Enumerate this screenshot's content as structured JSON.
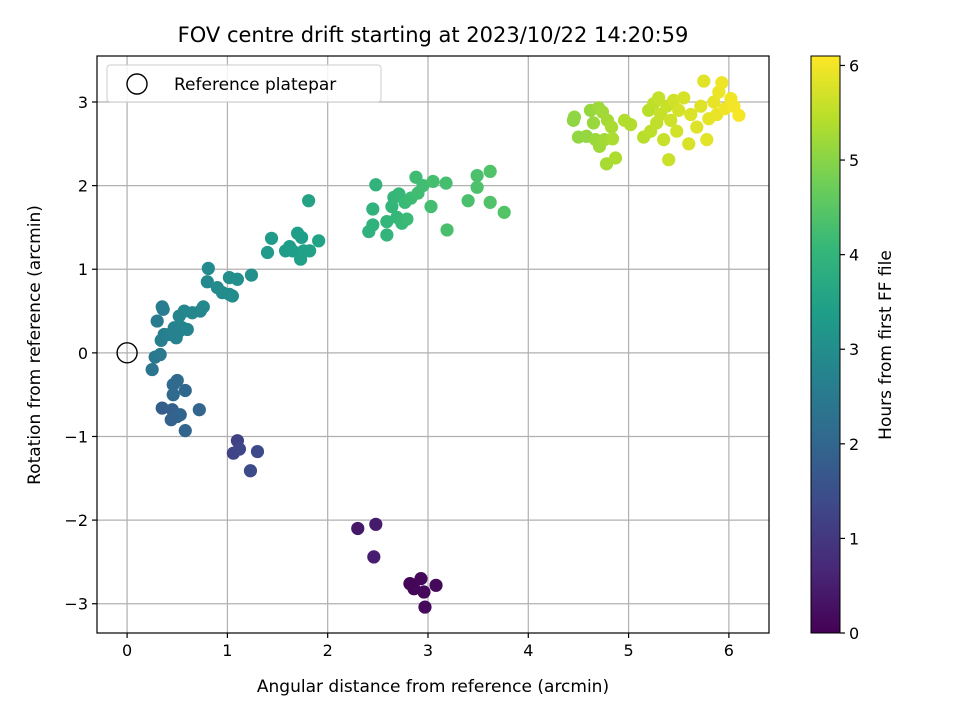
{
  "chart_data": {
    "type": "scatter",
    "title": "FOV centre drift starting at 2023/10/22 14:20:59",
    "xlabel": "Angular distance from reference (arcmin)",
    "ylabel": "Rotation from reference (arcmin)",
    "xlim": [
      -0.3,
      6.4
    ],
    "ylim": [
      -3.35,
      3.55
    ],
    "xticks": [
      0,
      1,
      2,
      3,
      4,
      5,
      6
    ],
    "yticks": [
      -3,
      -2,
      -1,
      0,
      1,
      2,
      3
    ],
    "xtick_labels": [
      "0",
      "1",
      "2",
      "3",
      "4",
      "5",
      "6"
    ],
    "ytick_labels": [
      "−3",
      "−2",
      "−1",
      "0",
      "1",
      "2",
      "3"
    ],
    "grid": true,
    "legend": {
      "placement": "top-left",
      "entries": [
        "Reference platepar"
      ]
    },
    "reference_point": {
      "name": "Reference platepar",
      "x": 0,
      "y": 0,
      "marker": "open-circle"
    },
    "colorbar": {
      "label": "Hours from first FF file",
      "colormap": "viridis",
      "range": [
        0,
        6.1
      ],
      "ticks": [
        0,
        1,
        2,
        3,
        4,
        5,
        6
      ],
      "tick_labels": [
        "0",
        "1",
        "2",
        "3",
        "4",
        "5",
        "6"
      ]
    },
    "points": [
      {
        "x": 2.82,
        "y": -2.76,
        "h": 0.05
      },
      {
        "x": 2.86,
        "y": -2.82,
        "h": 0.08
      },
      {
        "x": 2.93,
        "y": -2.7,
        "h": 0.1
      },
      {
        "x": 2.96,
        "y": -2.86,
        "h": 0.12
      },
      {
        "x": 3.08,
        "y": -2.78,
        "h": 0.14
      },
      {
        "x": 2.97,
        "y": -3.04,
        "h": 0.16
      },
      {
        "x": 2.3,
        "y": -2.1,
        "h": 0.4
      },
      {
        "x": 2.48,
        "y": -2.05,
        "h": 0.45
      },
      {
        "x": 2.46,
        "y": -2.44,
        "h": 0.5
      },
      {
        "x": 1.1,
        "y": -1.05,
        "h": 1.2
      },
      {
        "x": 1.06,
        "y": -1.2,
        "h": 1.25
      },
      {
        "x": 1.12,
        "y": -1.15,
        "h": 1.3
      },
      {
        "x": 1.3,
        "y": -1.18,
        "h": 1.35
      },
      {
        "x": 1.23,
        "y": -1.41,
        "h": 1.4
      },
      {
        "x": 0.35,
        "y": -0.66,
        "h": 1.8
      },
      {
        "x": 0.45,
        "y": -0.68,
        "h": 1.85
      },
      {
        "x": 0.44,
        "y": -0.8,
        "h": 1.9
      },
      {
        "x": 0.5,
        "y": -0.76,
        "h": 1.92
      },
      {
        "x": 0.58,
        "y": -0.93,
        "h": 1.95
      },
      {
        "x": 0.53,
        "y": -0.74,
        "h": 1.97
      },
      {
        "x": 0.72,
        "y": -0.68,
        "h": 2.0
      },
      {
        "x": 0.58,
        "y": -0.45,
        "h": 2.05
      },
      {
        "x": 0.46,
        "y": -0.38,
        "h": 2.08
      },
      {
        "x": 0.5,
        "y": -0.33,
        "h": 2.1
      },
      {
        "x": 0.46,
        "y": -0.5,
        "h": 2.12
      },
      {
        "x": 0.25,
        "y": -0.2,
        "h": 2.4
      },
      {
        "x": 0.28,
        "y": -0.05,
        "h": 2.45
      },
      {
        "x": 0.33,
        "y": -0.02,
        "h": 2.5
      },
      {
        "x": 0.3,
        "y": 0.38,
        "h": 2.55
      },
      {
        "x": 0.35,
        "y": 0.55,
        "h": 2.58
      },
      {
        "x": 0.36,
        "y": 0.52,
        "h": 2.6
      },
      {
        "x": 0.34,
        "y": 0.15,
        "h": 2.62
      },
      {
        "x": 0.37,
        "y": 0.22,
        "h": 2.64
      },
      {
        "x": 0.42,
        "y": 0.22,
        "h": 2.66
      },
      {
        "x": 0.47,
        "y": 0.3,
        "h": 2.68
      },
      {
        "x": 0.49,
        "y": 0.18,
        "h": 2.7
      },
      {
        "x": 0.52,
        "y": 0.26,
        "h": 2.72
      },
      {
        "x": 0.55,
        "y": 0.3,
        "h": 2.74
      },
      {
        "x": 0.6,
        "y": 0.28,
        "h": 2.76
      },
      {
        "x": 0.52,
        "y": 0.44,
        "h": 2.78
      },
      {
        "x": 0.57,
        "y": 0.5,
        "h": 2.8
      },
      {
        "x": 0.65,
        "y": 0.48,
        "h": 2.82
      },
      {
        "x": 0.73,
        "y": 0.5,
        "h": 2.84
      },
      {
        "x": 0.76,
        "y": 0.55,
        "h": 2.86
      },
      {
        "x": 0.8,
        "y": 0.85,
        "h": 2.88
      },
      {
        "x": 0.81,
        "y": 1.01,
        "h": 2.9
      },
      {
        "x": 0.9,
        "y": 0.78,
        "h": 2.92
      },
      {
        "x": 0.95,
        "y": 0.72,
        "h": 2.94
      },
      {
        "x": 1.02,
        "y": 0.7,
        "h": 2.96
      },
      {
        "x": 1.05,
        "y": 0.68,
        "h": 2.98
      },
      {
        "x": 1.02,
        "y": 0.9,
        "h": 3.0
      },
      {
        "x": 1.1,
        "y": 0.88,
        "h": 3.02
      },
      {
        "x": 1.24,
        "y": 0.93,
        "h": 3.04
      },
      {
        "x": 1.4,
        "y": 1.2,
        "h": 3.3
      },
      {
        "x": 1.44,
        "y": 1.37,
        "h": 3.32
      },
      {
        "x": 1.58,
        "y": 1.22,
        "h": 3.34
      },
      {
        "x": 1.62,
        "y": 1.27,
        "h": 3.36
      },
      {
        "x": 1.65,
        "y": 1.22,
        "h": 3.38
      },
      {
        "x": 1.7,
        "y": 1.43,
        "h": 3.4
      },
      {
        "x": 1.74,
        "y": 1.38,
        "h": 3.42
      },
      {
        "x": 1.73,
        "y": 1.12,
        "h": 3.44
      },
      {
        "x": 1.76,
        "y": 1.22,
        "h": 3.46
      },
      {
        "x": 1.82,
        "y": 1.22,
        "h": 3.48
      },
      {
        "x": 1.81,
        "y": 1.82,
        "h": 3.5
      },
      {
        "x": 1.91,
        "y": 1.34,
        "h": 3.52
      },
      {
        "x": 2.41,
        "y": 1.45,
        "h": 3.9
      },
      {
        "x": 2.45,
        "y": 1.53,
        "h": 3.92
      },
      {
        "x": 2.45,
        "y": 1.72,
        "h": 3.94
      },
      {
        "x": 2.48,
        "y": 2.01,
        "h": 3.96
      },
      {
        "x": 2.59,
        "y": 1.41,
        "h": 3.98
      },
      {
        "x": 2.59,
        "y": 1.57,
        "h": 4.0
      },
      {
        "x": 2.64,
        "y": 1.75,
        "h": 4.02
      },
      {
        "x": 2.66,
        "y": 1.86,
        "h": 4.04
      },
      {
        "x": 2.69,
        "y": 1.62,
        "h": 4.06
      },
      {
        "x": 2.71,
        "y": 1.9,
        "h": 4.08
      },
      {
        "x": 2.74,
        "y": 1.55,
        "h": 4.1
      },
      {
        "x": 2.77,
        "y": 1.8,
        "h": 4.12
      },
      {
        "x": 2.79,
        "y": 1.6,
        "h": 4.14
      },
      {
        "x": 2.83,
        "y": 1.85,
        "h": 4.16
      },
      {
        "x": 2.88,
        "y": 2.1,
        "h": 4.18
      },
      {
        "x": 2.9,
        "y": 1.91,
        "h": 4.2
      },
      {
        "x": 2.95,
        "y": 2.0,
        "h": 4.22
      },
      {
        "x": 3.03,
        "y": 1.75,
        "h": 4.24
      },
      {
        "x": 3.05,
        "y": 2.05,
        "h": 4.26
      },
      {
        "x": 3.18,
        "y": 2.03,
        "h": 4.28
      },
      {
        "x": 3.19,
        "y": 1.47,
        "h": 4.3
      },
      {
        "x": 3.4,
        "y": 1.82,
        "h": 4.32
      },
      {
        "x": 3.49,
        "y": 2.12,
        "h": 4.34
      },
      {
        "x": 3.49,
        "y": 1.98,
        "h": 4.36
      },
      {
        "x": 3.62,
        "y": 2.17,
        "h": 4.38
      },
      {
        "x": 3.62,
        "y": 1.8,
        "h": 4.4
      },
      {
        "x": 3.76,
        "y": 1.68,
        "h": 4.42
      },
      {
        "x": 4.45,
        "y": 2.78,
        "h": 5.05
      },
      {
        "x": 4.46,
        "y": 2.82,
        "h": 5.07
      },
      {
        "x": 4.5,
        "y": 2.58,
        "h": 5.09
      },
      {
        "x": 4.58,
        "y": 2.59,
        "h": 5.11
      },
      {
        "x": 4.62,
        "y": 2.9,
        "h": 5.13
      },
      {
        "x": 4.65,
        "y": 2.75,
        "h": 5.15
      },
      {
        "x": 4.67,
        "y": 2.55,
        "h": 5.17
      },
      {
        "x": 4.7,
        "y": 2.93,
        "h": 5.19
      },
      {
        "x": 4.71,
        "y": 2.47,
        "h": 5.21
      },
      {
        "x": 4.74,
        "y": 2.88,
        "h": 5.23
      },
      {
        "x": 4.76,
        "y": 2.55,
        "h": 5.25
      },
      {
        "x": 4.79,
        "y": 2.78,
        "h": 5.27
      },
      {
        "x": 4.78,
        "y": 2.26,
        "h": 5.29
      },
      {
        "x": 4.83,
        "y": 2.7,
        "h": 5.31
      },
      {
        "x": 4.84,
        "y": 2.56,
        "h": 5.33
      },
      {
        "x": 4.87,
        "y": 2.33,
        "h": 5.35
      },
      {
        "x": 4.96,
        "y": 2.78,
        "h": 5.37
      },
      {
        "x": 5.02,
        "y": 2.73,
        "h": 5.39
      },
      {
        "x": 5.15,
        "y": 2.58,
        "h": 5.45
      },
      {
        "x": 5.2,
        "y": 2.9,
        "h": 5.47
      },
      {
        "x": 5.22,
        "y": 2.65,
        "h": 5.49
      },
      {
        "x": 5.25,
        "y": 2.98,
        "h": 5.51
      },
      {
        "x": 5.28,
        "y": 2.75,
        "h": 5.53
      },
      {
        "x": 5.3,
        "y": 3.05,
        "h": 5.55
      },
      {
        "x": 5.32,
        "y": 2.85,
        "h": 5.57
      },
      {
        "x": 5.35,
        "y": 2.55,
        "h": 5.59
      },
      {
        "x": 5.38,
        "y": 2.95,
        "h": 5.61
      },
      {
        "x": 5.4,
        "y": 2.31,
        "h": 5.63
      },
      {
        "x": 5.42,
        "y": 2.78,
        "h": 5.65
      },
      {
        "x": 5.45,
        "y": 3.02,
        "h": 5.67
      },
      {
        "x": 5.48,
        "y": 2.65,
        "h": 5.69
      },
      {
        "x": 5.5,
        "y": 2.9,
        "h": 5.71
      },
      {
        "x": 5.55,
        "y": 3.05,
        "h": 5.73
      },
      {
        "x": 5.6,
        "y": 2.5,
        "h": 5.75
      },
      {
        "x": 5.62,
        "y": 2.85,
        "h": 5.77
      },
      {
        "x": 5.68,
        "y": 2.7,
        "h": 5.79
      },
      {
        "x": 5.72,
        "y": 2.95,
        "h": 5.81
      },
      {
        "x": 5.75,
        "y": 3.25,
        "h": 5.83
      },
      {
        "x": 5.78,
        "y": 2.55,
        "h": 5.85
      },
      {
        "x": 5.8,
        "y": 2.8,
        "h": 5.87
      },
      {
        "x": 5.85,
        "y": 3.0,
        "h": 5.89
      },
      {
        "x": 5.88,
        "y": 2.85,
        "h": 5.91
      },
      {
        "x": 5.9,
        "y": 3.12,
        "h": 5.93
      },
      {
        "x": 5.93,
        "y": 3.23,
        "h": 5.95
      },
      {
        "x": 5.96,
        "y": 2.92,
        "h": 5.97
      },
      {
        "x": 6.02,
        "y": 3.04,
        "h": 5.99
      },
      {
        "x": 6.05,
        "y": 2.95,
        "h": 6.01
      },
      {
        "x": 6.1,
        "y": 2.84,
        "h": 6.03
      }
    ]
  },
  "colors": {
    "viridis_stops": [
      "#440154",
      "#482878",
      "#3e4989",
      "#31688e",
      "#26828e",
      "#1f9e89",
      "#35b779",
      "#6ece58",
      "#b5de2b",
      "#fde725"
    ],
    "reference_marker_edge": "#000000",
    "legend_border": "#cccccc",
    "grid": "#b0b0b0"
  }
}
